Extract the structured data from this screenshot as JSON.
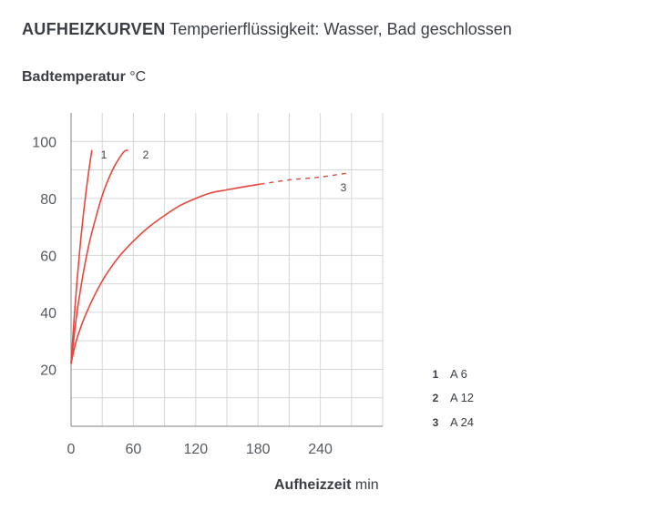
{
  "header": {
    "title_bold": "AUFHEIZKURVEN",
    "title_light": "Temperierflüssigkeit: Wasser, Bad geschlossen"
  },
  "colors": {
    "curve": "#e8463c",
    "grid": "#d6d6d6",
    "axis": "#9a9a9a"
  },
  "chart_data": {
    "type": "line",
    "title": "AUFHEIZKURVEN Temperierflüssigkeit: Wasser, Bad geschlossen",
    "ylabel_bold": "Badtemperatur",
    "ylabel_unit": "°C",
    "xlabel_bold": "Aufheizzeit",
    "xlabel_unit": "min",
    "xlim": [
      0,
      300
    ],
    "ylim": [
      0,
      110
    ],
    "x_grid_step": 30,
    "y_grid_step": 10,
    "x_ticks": [
      0,
      60,
      120,
      180,
      240
    ],
    "y_ticks": [
      20,
      40,
      60,
      80,
      100
    ],
    "grid": true,
    "series": [
      {
        "id": "1",
        "name": "A 6",
        "label": "1",
        "points": [
          [
            0,
            22
          ],
          [
            3,
            38
          ],
          [
            6,
            52
          ],
          [
            10,
            68
          ],
          [
            15,
            84
          ],
          [
            20,
            97
          ]
        ]
      },
      {
        "id": "2",
        "name": "A 12",
        "label": "2",
        "points": [
          [
            0,
            22
          ],
          [
            5,
            38
          ],
          [
            10,
            50
          ],
          [
            15,
            60
          ],
          [
            20,
            68
          ],
          [
            30,
            81
          ],
          [
            40,
            90
          ],
          [
            50,
            96
          ],
          [
            55,
            97
          ]
        ]
      },
      {
        "id": "3",
        "name": "A 24",
        "label": "3",
        "points": [
          [
            0,
            22
          ],
          [
            5,
            30
          ],
          [
            15,
            40
          ],
          [
            30,
            51
          ],
          [
            45,
            59
          ],
          [
            60,
            65
          ],
          [
            75,
            70
          ],
          [
            90,
            74
          ],
          [
            105,
            77.5
          ],
          [
            120,
            80
          ],
          [
            135,
            82
          ],
          [
            150,
            83
          ],
          [
            165,
            84
          ],
          [
            182,
            85
          ]
        ],
        "extrapolated": [
          [
            182,
            85
          ],
          [
            210,
            86.5
          ],
          [
            240,
            87.5
          ],
          [
            268,
            89
          ]
        ]
      }
    ],
    "legend": [
      {
        "num": "1",
        "text": "A 6"
      },
      {
        "num": "2",
        "text": "A 12"
      },
      {
        "num": "3",
        "text": "A 24"
      }
    ]
  }
}
